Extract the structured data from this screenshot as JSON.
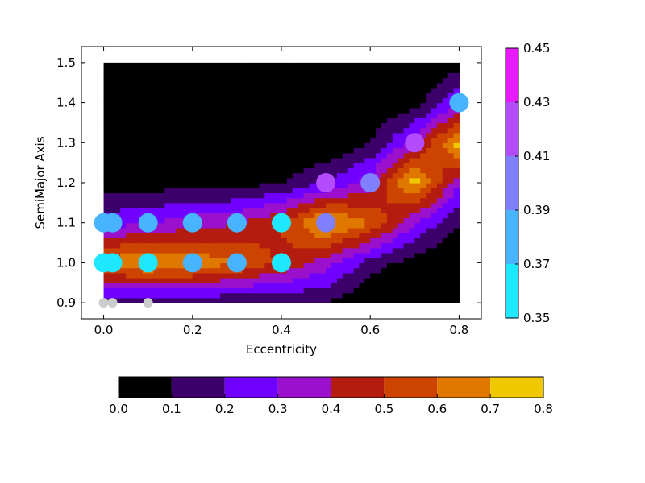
{
  "chart_data": {
    "type": "contour",
    "xlabel": "Eccentricity",
    "ylabel": "SemiMajor Axis",
    "xlim": [
      -0.05,
      0.85
    ],
    "ylim": [
      0.86,
      1.54
    ],
    "x_ticks": [
      "0.0",
      "0.2",
      "0.4",
      "0.6",
      "0.8"
    ],
    "y_ticks": [
      "0.9",
      "1.0",
      "1.1",
      "1.2",
      "1.3",
      "1.4",
      "1.5"
    ],
    "contour_grid": {
      "x": [
        0.0,
        0.1,
        0.2,
        0.3,
        0.4,
        0.5,
        0.6,
        0.7,
        0.8
      ],
      "y": [
        0.9,
        1.0,
        1.1,
        1.2,
        1.3,
        1.4,
        1.5
      ],
      "z": [
        [
          0.1,
          0.1,
          0.1,
          0.1,
          0.1,
          0.1,
          0.0,
          0.0,
          0.0
        ],
        [
          0.65,
          0.72,
          0.68,
          0.6,
          0.48,
          0.35,
          0.15,
          0.05,
          0.0
        ],
        [
          0.25,
          0.3,
          0.35,
          0.4,
          0.5,
          0.75,
          0.6,
          0.3,
          0.1
        ],
        [
          0.05,
          0.05,
          0.05,
          0.05,
          0.1,
          0.2,
          0.35,
          0.75,
          0.3
        ],
        [
          0.0,
          0.0,
          0.0,
          0.0,
          0.0,
          0.0,
          0.1,
          0.35,
          0.75
        ],
        [
          0.0,
          0.0,
          0.0,
          0.0,
          0.0,
          0.0,
          0.0,
          0.05,
          0.3
        ],
        [
          0.0,
          0.0,
          0.0,
          0.0,
          0.0,
          0.0,
          0.0,
          0.0,
          0.05
        ]
      ]
    },
    "points": [
      {
        "x": 0.0,
        "y": 0.9,
        "v": null
      },
      {
        "x": 0.02,
        "y": 0.9,
        "v": null
      },
      {
        "x": 0.1,
        "y": 0.9,
        "v": null
      },
      {
        "x": 0.0,
        "y": 1.0,
        "v": 0.355
      },
      {
        "x": 0.02,
        "y": 1.0,
        "v": 0.355
      },
      {
        "x": 0.1,
        "y": 1.0,
        "v": 0.36
      },
      {
        "x": 0.2,
        "y": 1.0,
        "v": 0.375
      },
      {
        "x": 0.3,
        "y": 1.0,
        "v": 0.38
      },
      {
        "x": 0.4,
        "y": 1.0,
        "v": 0.36
      },
      {
        "x": 0.0,
        "y": 1.1,
        "v": 0.38
      },
      {
        "x": 0.02,
        "y": 1.1,
        "v": 0.38
      },
      {
        "x": 0.1,
        "y": 1.1,
        "v": 0.385
      },
      {
        "x": 0.2,
        "y": 1.1,
        "v": 0.385
      },
      {
        "x": 0.3,
        "y": 1.1,
        "v": 0.385
      },
      {
        "x": 0.4,
        "y": 1.1,
        "v": 0.36
      },
      {
        "x": 0.5,
        "y": 1.1,
        "v": 0.39
      },
      {
        "x": 0.5,
        "y": 1.2,
        "v": 0.42
      },
      {
        "x": 0.6,
        "y": 1.2,
        "v": 0.39
      },
      {
        "x": 0.7,
        "y": 1.3,
        "v": 0.42
      },
      {
        "x": 0.8,
        "y": 1.4,
        "v": 0.385
      }
    ],
    "vertical_colorbar": {
      "labels": [
        "0.45",
        "0.43",
        "0.41",
        "0.39",
        "0.37",
        "0.35"
      ],
      "bounds": [
        0.35,
        0.37,
        0.39,
        0.41,
        0.43,
        0.45
      ],
      "colors": [
        "#1ee8ff",
        "#48b4ff",
        "#7f7fff",
        "#b34cff",
        "#e81aff"
      ]
    },
    "horizontal_colorbar": {
      "labels": [
        "0.0",
        "0.1",
        "0.2",
        "0.3",
        "0.4",
        "0.5",
        "0.6",
        "0.7",
        "0.8"
      ],
      "bounds": [
        0.0,
        0.1,
        0.2,
        0.3,
        0.4,
        0.5,
        0.6,
        0.7,
        0.8
      ],
      "colors": [
        "#000000",
        "#3c006a",
        "#7000ff",
        "#9a10cc",
        "#b41c10",
        "#cc4400",
        "#e07800",
        "#f0c800"
      ]
    }
  }
}
